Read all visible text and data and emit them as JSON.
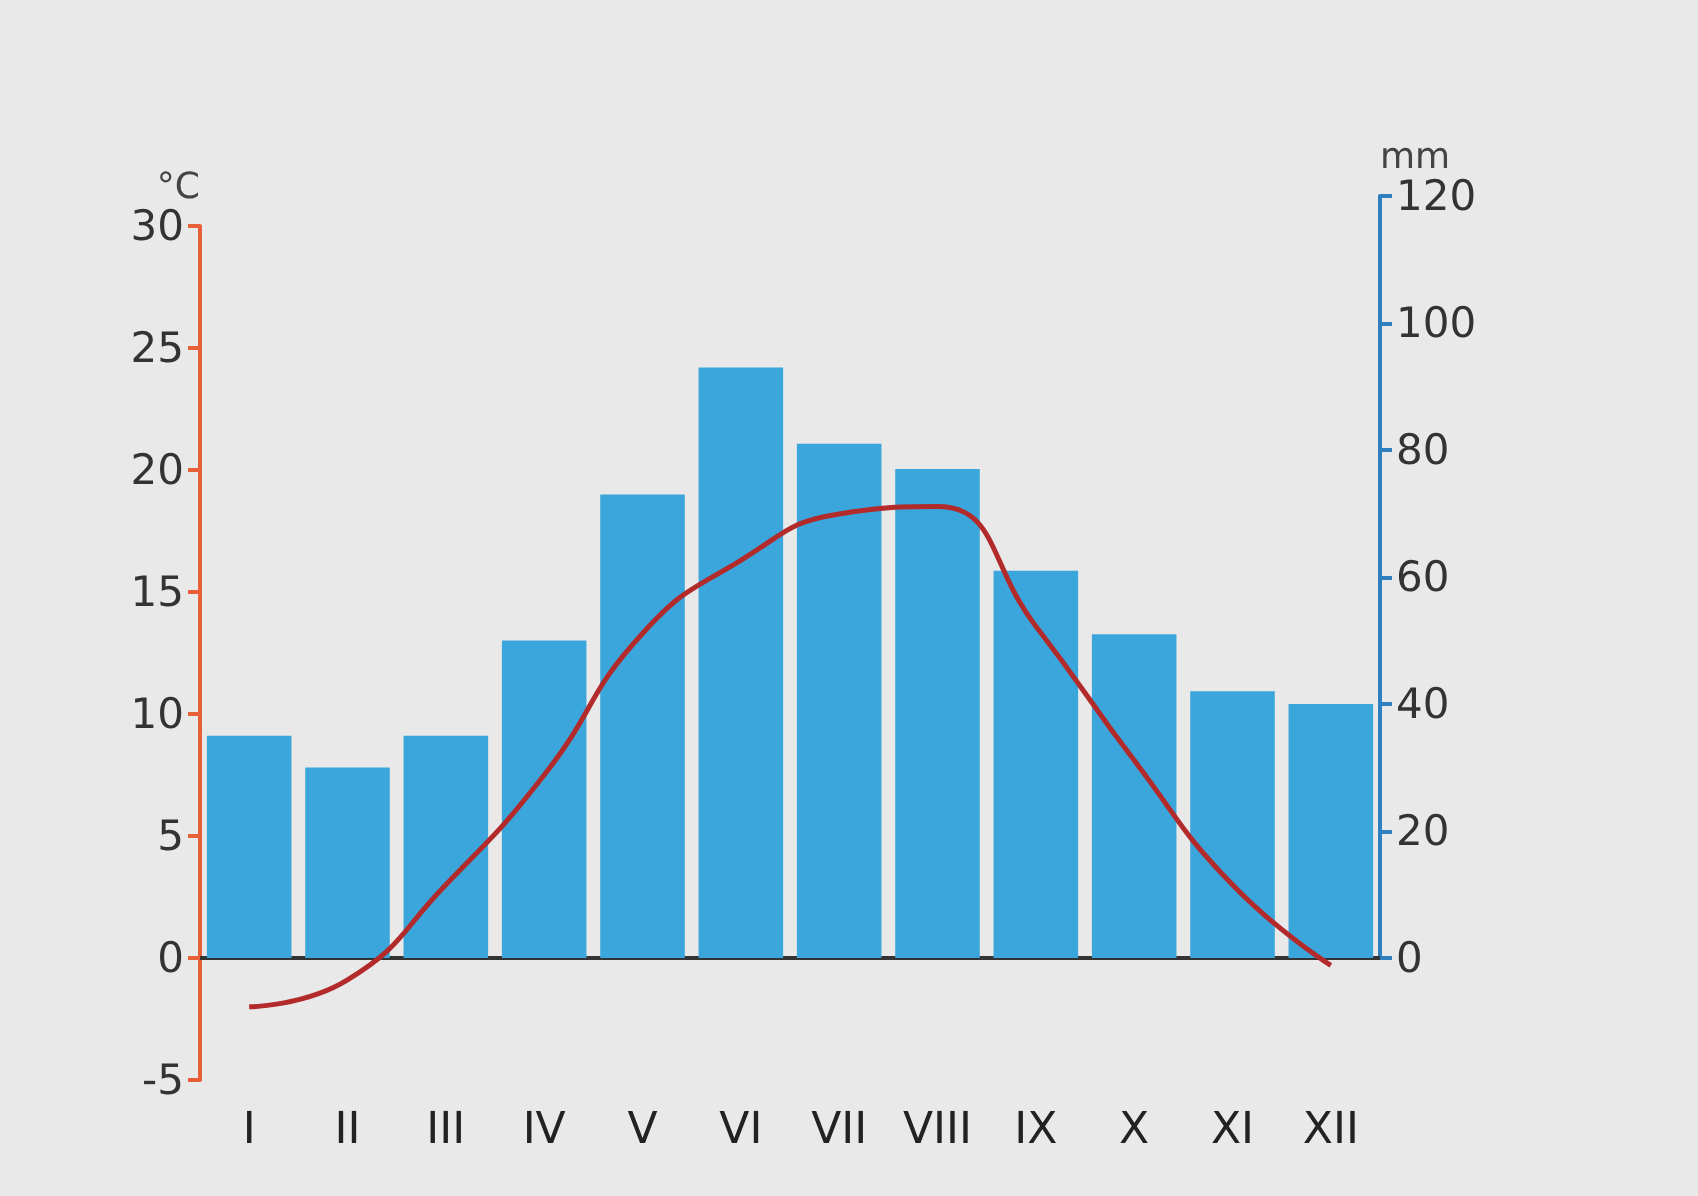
{
  "chart_data": {
    "type": "bar",
    "categories": [
      "I",
      "II",
      "III",
      "IV",
      "V",
      "VI",
      "VII",
      "VIII",
      "IX",
      "X",
      "XI",
      "XII"
    ],
    "ylabel": "°C",
    "y2label": "mm",
    "ylim": [
      -5,
      30
    ],
    "yticks": [
      -5,
      0,
      5,
      10,
      15,
      20,
      25,
      30
    ],
    "y2lim": [
      0,
      120
    ],
    "y2ticks": [
      0,
      20,
      40,
      60,
      80,
      100,
      120
    ],
    "series": [
      {
        "axis": "y2",
        "color": "#3ba6dc",
        "values": [
          35,
          30,
          35,
          50,
          73,
          93,
          81,
          77,
          61,
          51,
          42,
          40
        ]
      },
      {
        "type": "line",
        "axis": "y",
        "color": "#b22a2a",
        "marker": "none",
        "values": [
          -2,
          -0.9,
          3,
          7.5,
          13.3,
          16.3,
          18.2,
          18.5,
          13.6,
          8.1,
          3,
          -0.3
        ]
      }
    ]
  }
}
